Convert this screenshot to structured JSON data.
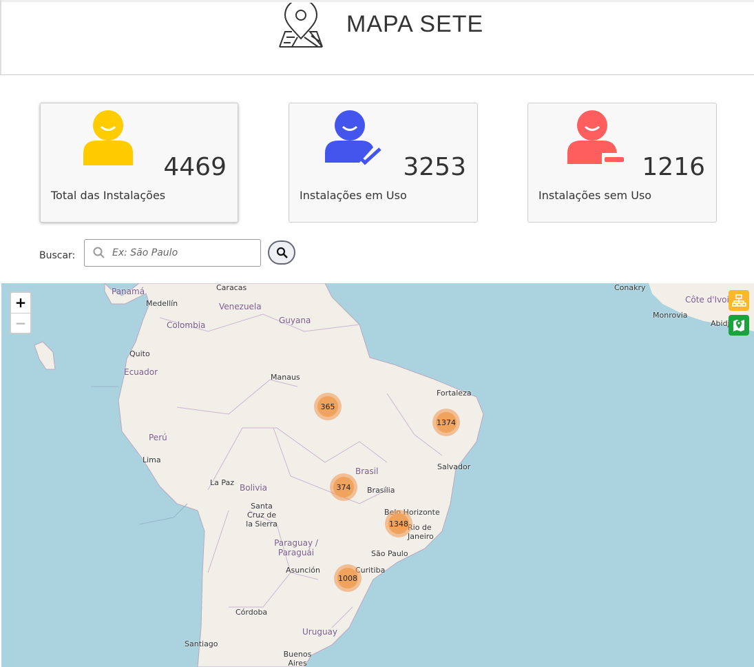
{
  "header": {
    "title": "MAPA SETE",
    "logo_icon": "map-pin-icon"
  },
  "stats": [
    {
      "value": "4469",
      "label": "Total das Instalações",
      "icon": "user-icon",
      "color": "#ffcc00"
    },
    {
      "value": "3253",
      "label": "Instalações em Uso",
      "icon": "user-check-icon",
      "color": "#4455ee"
    },
    {
      "value": "1216",
      "label": "Instalações sem Uso",
      "icon": "user-minus-icon",
      "color": "#ff5e5e"
    }
  ],
  "search": {
    "label": "Buscar:",
    "placeholder": "Ex: São Paulo",
    "button_icon": "search-icon"
  },
  "map": {
    "zoom_in": "+",
    "zoom_out": "−",
    "colors": {
      "ocean": "#aad3df",
      "land": "#f2efe9",
      "cluster": "#f0a35c"
    },
    "clusters": [
      "365",
      "1374",
      "374",
      "1348",
      "1008"
    ],
    "labels": {
      "panama": "Panamá",
      "medellin": "Medellín",
      "colombia": "Colombia",
      "caracas": "Caracas",
      "venezuela": "Venezuela",
      "guyana": "Guyana",
      "quito": "Quito",
      "ecuador": "Ecuador",
      "manaus": "Manaus",
      "fortaleza": "Fortaleza",
      "peru": "Perú",
      "lima": "Lima",
      "brasil": "Brasil",
      "brasilia": "Brasília",
      "salvador": "Salvador",
      "lapaz": "La Paz",
      "bolivia": "Bolivia",
      "santacruz": "Santa Cruz de la Sierra",
      "belohorizonte": "Belo Horizonte",
      "rio": "Rio de Janeiro",
      "paraguay": "Paraguay / Paraguái",
      "saopaulo": "São Paulo",
      "asuncion": "Asunción",
      "curitiba": "Curitiba",
      "cordoba": "Córdoba",
      "uruguay": "Uruguay",
      "santiago": "Santiago",
      "buenosaires": "Buenos Aires",
      "conakry": "Conakry",
      "cotedivoire": "Côte d'Ivoire",
      "monrovia": "Monrovia",
      "abidjan": "Abidjan"
    },
    "layer_buttons": [
      {
        "icon": "sitemap-icon",
        "color": "#fbb829"
      },
      {
        "icon": "map-marker-icon",
        "color": "#1aa33c"
      }
    ]
  }
}
